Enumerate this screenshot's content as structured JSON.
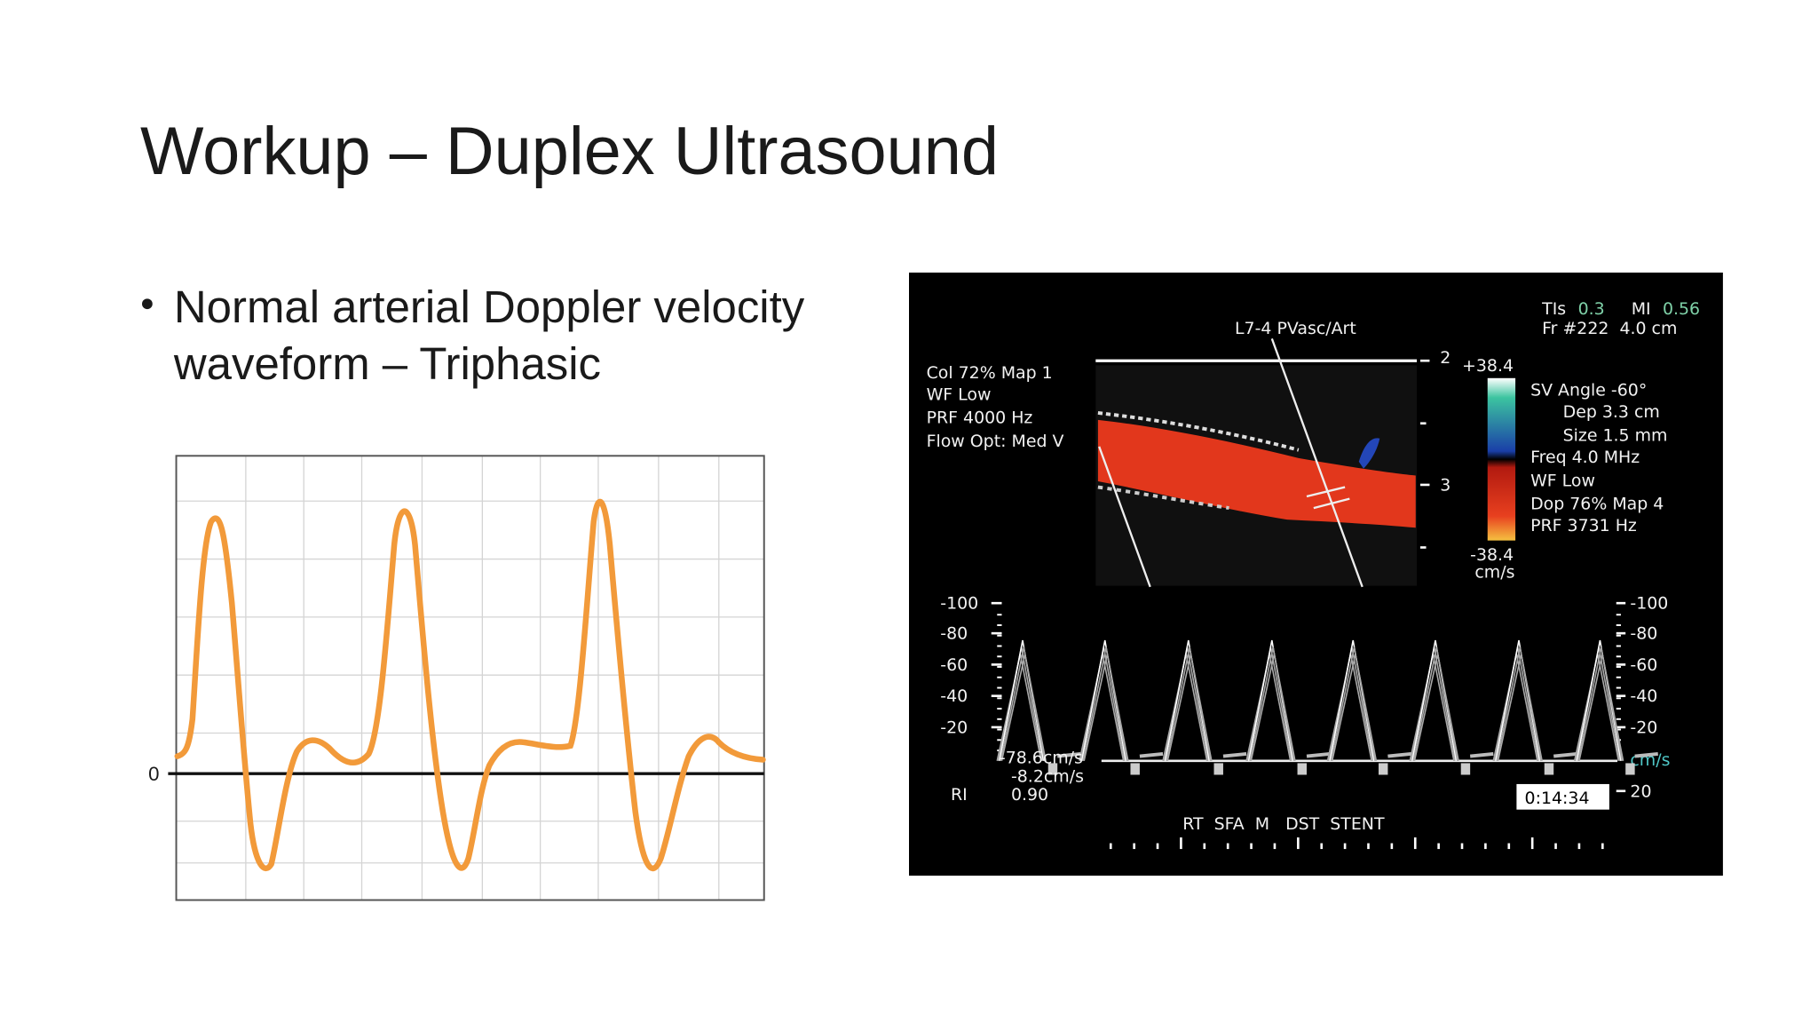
{
  "title": "Workup – Duplex Ultrasound",
  "bullets": [
    {
      "lines": [
        "Normal arterial Doppler velocity",
        "waveform – Triphasic"
      ]
    }
  ],
  "waveform_chart": {
    "zero_label": "0"
  },
  "ultrasound": {
    "probe": "L7-4 PVasc/Art",
    "top_right": {
      "tis_label": "TIs",
      "tis_value": "0.3",
      "mi_label": "MI",
      "mi_value": "0.56",
      "line2": "Fr #222  4.0 cm"
    },
    "color_settings": [
      "Col 72% Map 1",
      "WF Low",
      "PRF 4000 Hz",
      "Flow Opt: Med V"
    ],
    "depth_marks": [
      "2",
      "3"
    ],
    "color_scale": {
      "top": "+38.4",
      "bottom": "-38.4",
      "unit": "cm/s"
    },
    "doppler_settings": [
      "SV Angle -60°",
      "Dep 3.3 cm",
      "Size 1.5 mm",
      "Freq 4.0 MHz",
      "WF Low",
      "Dop 76% Map 4",
      "PRF 3731 Hz"
    ],
    "velocity_scale_left": [
      "-100",
      "-80",
      "-60",
      "-40",
      "-20"
    ],
    "velocity_scale_right": [
      "-100",
      "-80",
      "-60",
      "-40",
      "-20"
    ],
    "velocity_unit": "cm/s",
    "velocity_below": "20",
    "measurements": {
      "peak": "-78.6cm/s",
      "min": "-8.2cm/s",
      "ri_label": "RI",
      "ri_value": "0.90"
    },
    "timer": "0:14:34",
    "annotation": "RT  SFA  M   DST  STENT"
  }
}
